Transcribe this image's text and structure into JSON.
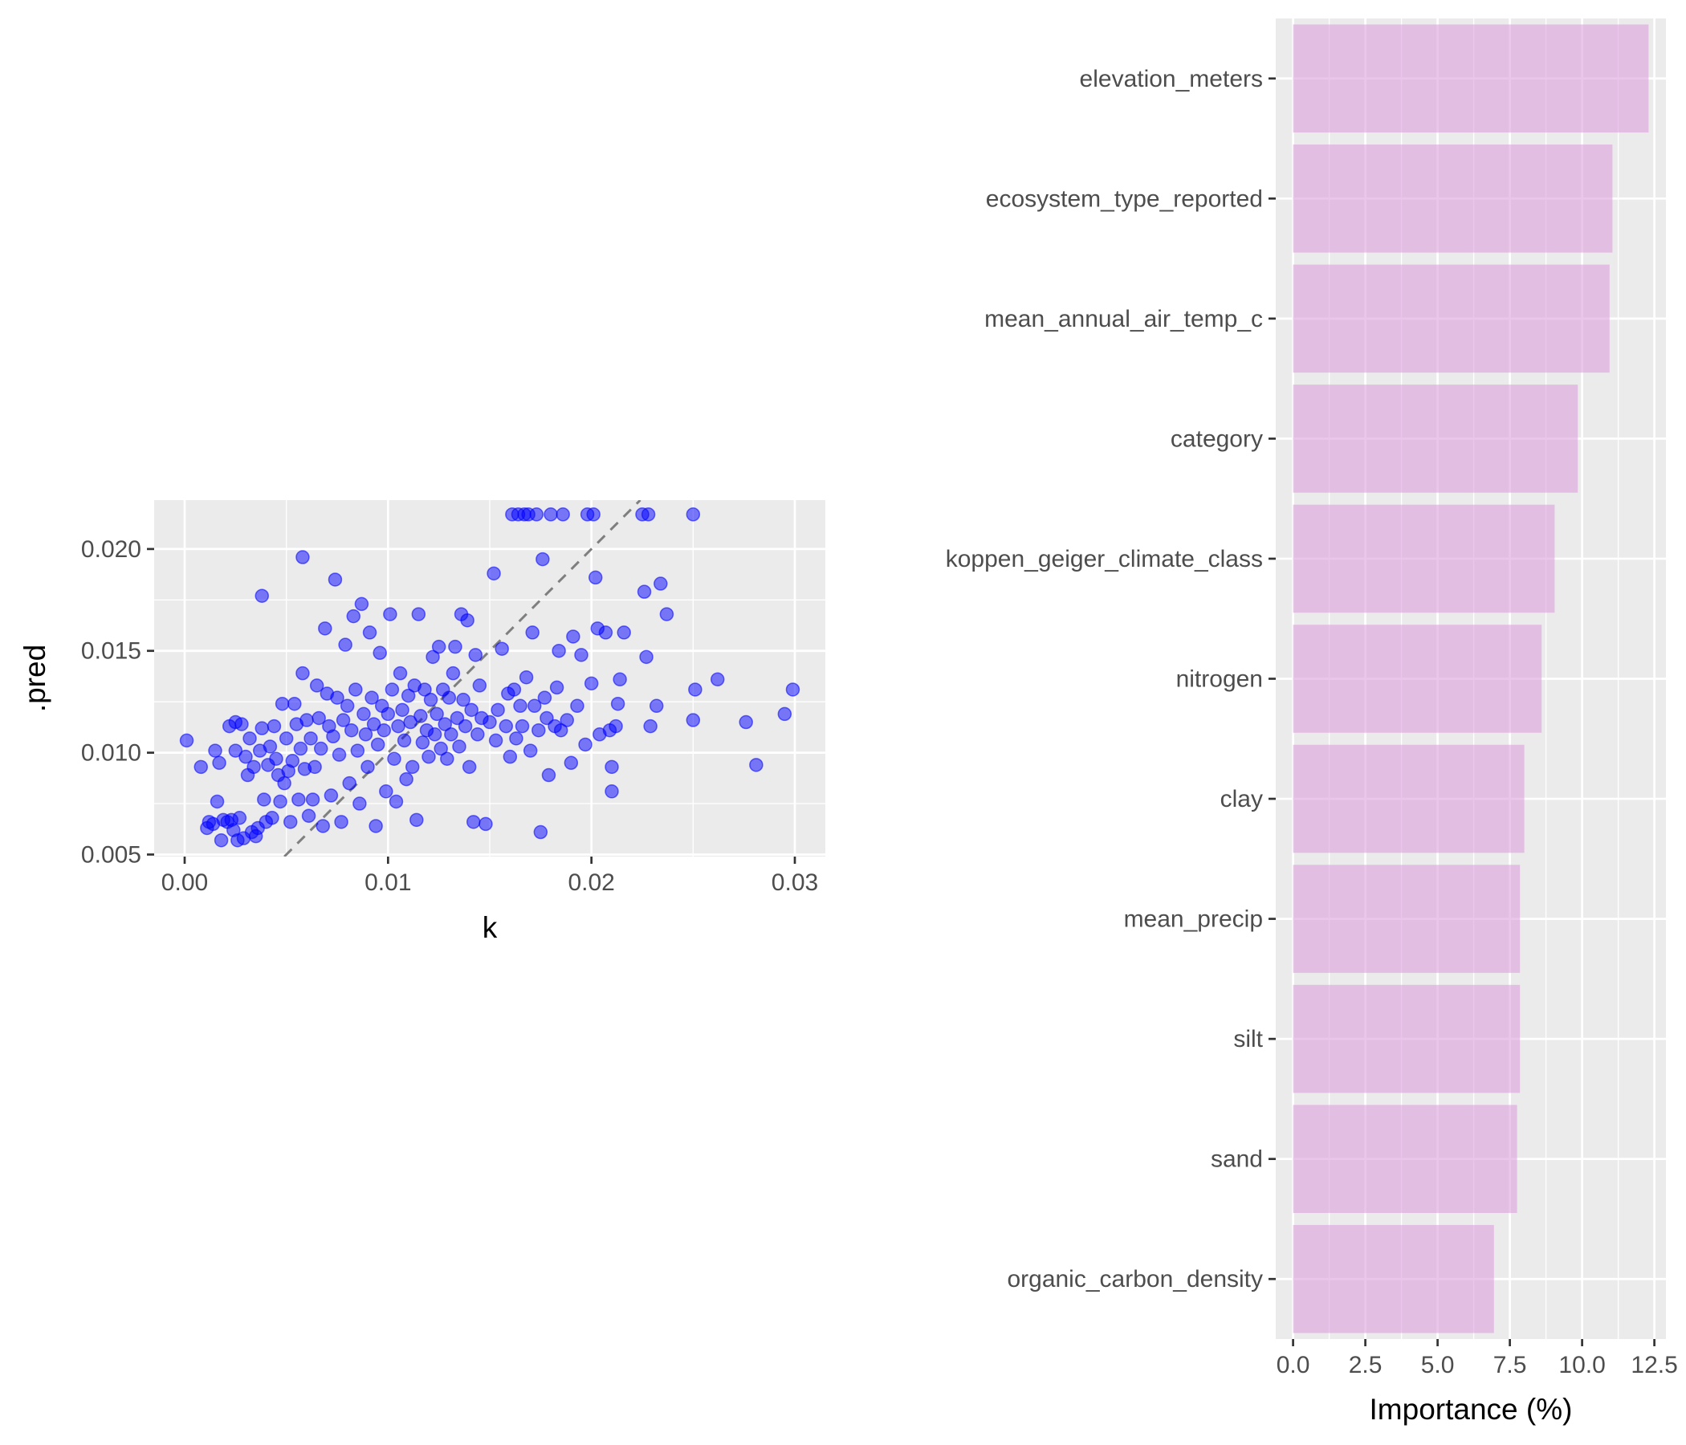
{
  "chart_data": [
    {
      "type": "scatter",
      "xlabel": "k",
      "ylabel": ".pred",
      "xlim": [
        -0.0015,
        0.0315
      ],
      "ylim": [
        0.0049,
        0.0224
      ],
      "x_ticks": [
        0.0,
        0.01,
        0.02,
        0.03
      ],
      "x_tick_labels": [
        "0.00",
        "0.01",
        "0.02",
        "0.03"
      ],
      "y_ticks": [
        0.005,
        0.01,
        0.015,
        0.02
      ],
      "y_tick_labels": [
        "0.005",
        "0.010",
        "0.015",
        "0.020"
      ],
      "reference_line": "y = x",
      "point_color": "#0000FF",
      "points": [
        [
          0.0001,
          0.0106
        ],
        [
          0.0008,
          0.0093
        ],
        [
          0.0011,
          0.0063
        ],
        [
          0.0012,
          0.0066
        ],
        [
          0.0014,
          0.0065
        ],
        [
          0.0015,
          0.0101
        ],
        [
          0.0016,
          0.0076
        ],
        [
          0.0017,
          0.0095
        ],
        [
          0.0018,
          0.0057
        ],
        [
          0.0019,
          0.0067
        ],
        [
          0.0021,
          0.0066
        ],
        [
          0.0022,
          0.0113
        ],
        [
          0.0023,
          0.0067
        ],
        [
          0.0024,
          0.0062
        ],
        [
          0.0025,
          0.0101
        ],
        [
          0.0025,
          0.0115
        ],
        [
          0.0026,
          0.0057
        ],
        [
          0.0027,
          0.0068
        ],
        [
          0.0028,
          0.0114
        ],
        [
          0.0029,
          0.0058
        ],
        [
          0.003,
          0.0098
        ],
        [
          0.0031,
          0.0089
        ],
        [
          0.0032,
          0.0107
        ],
        [
          0.0033,
          0.0061
        ],
        [
          0.0034,
          0.0093
        ],
        [
          0.0035,
          0.0059
        ],
        [
          0.0036,
          0.0063
        ],
        [
          0.0037,
          0.0101
        ],
        [
          0.0038,
          0.0112
        ],
        [
          0.0039,
          0.0077
        ],
        [
          0.0038,
          0.0177
        ],
        [
          0.004,
          0.0066
        ],
        [
          0.0041,
          0.0094
        ],
        [
          0.0042,
          0.0103
        ],
        [
          0.0043,
          0.0068
        ],
        [
          0.0044,
          0.0113
        ],
        [
          0.0045,
          0.0097
        ],
        [
          0.0046,
          0.0089
        ],
        [
          0.0047,
          0.0076
        ],
        [
          0.0048,
          0.0124
        ],
        [
          0.0049,
          0.0085
        ],
        [
          0.005,
          0.0107
        ],
        [
          0.0051,
          0.0091
        ],
        [
          0.0052,
          0.0066
        ],
        [
          0.0053,
          0.0096
        ],
        [
          0.0054,
          0.0124
        ],
        [
          0.0055,
          0.0114
        ],
        [
          0.0056,
          0.0077
        ],
        [
          0.0057,
          0.0102
        ],
        [
          0.0058,
          0.0139
        ],
        [
          0.0058,
          0.0196
        ],
        [
          0.0059,
          0.0092
        ],
        [
          0.006,
          0.0116
        ],
        [
          0.0061,
          0.0069
        ],
        [
          0.0062,
          0.0107
        ],
        [
          0.0063,
          0.0077
        ],
        [
          0.0064,
          0.0093
        ],
        [
          0.0065,
          0.0133
        ],
        [
          0.0066,
          0.0117
        ],
        [
          0.0067,
          0.0102
        ],
        [
          0.0068,
          0.0064
        ],
        [
          0.0069,
          0.0161
        ],
        [
          0.007,
          0.0129
        ],
        [
          0.0071,
          0.0113
        ],
        [
          0.0072,
          0.0079
        ],
        [
          0.0073,
          0.0108
        ],
        [
          0.0074,
          0.0185
        ],
        [
          0.0075,
          0.0127
        ],
        [
          0.0076,
          0.0099
        ],
        [
          0.0077,
          0.0066
        ],
        [
          0.0078,
          0.0116
        ],
        [
          0.0079,
          0.0153
        ],
        [
          0.008,
          0.0123
        ],
        [
          0.0081,
          0.0085
        ],
        [
          0.0082,
          0.0111
        ],
        [
          0.0083,
          0.0167
        ],
        [
          0.0084,
          0.0131
        ],
        [
          0.0085,
          0.0101
        ],
        [
          0.0086,
          0.0075
        ],
        [
          0.0087,
          0.0173
        ],
        [
          0.0088,
          0.0119
        ],
        [
          0.0089,
          0.0109
        ],
        [
          0.009,
          0.0093
        ],
        [
          0.0091,
          0.0159
        ],
        [
          0.0092,
          0.0127
        ],
        [
          0.0093,
          0.0114
        ],
        [
          0.0094,
          0.0064
        ],
        [
          0.0095,
          0.0104
        ],
        [
          0.0096,
          0.0149
        ],
        [
          0.0097,
          0.0123
        ],
        [
          0.0098,
          0.0111
        ],
        [
          0.0099,
          0.0081
        ],
        [
          0.01,
          0.0119
        ],
        [
          0.0101,
          0.0168
        ],
        [
          0.0102,
          0.0131
        ],
        [
          0.0103,
          0.0097
        ],
        [
          0.0104,
          0.0076
        ],
        [
          0.0105,
          0.0113
        ],
        [
          0.0106,
          0.0139
        ],
        [
          0.0107,
          0.0121
        ],
        [
          0.0108,
          0.0106
        ],
        [
          0.0109,
          0.0087
        ],
        [
          0.011,
          0.0128
        ],
        [
          0.0111,
          0.0115
        ],
        [
          0.0112,
          0.0093
        ],
        [
          0.0113,
          0.0133
        ],
        [
          0.0114,
          0.0067
        ],
        [
          0.0115,
          0.0168
        ],
        [
          0.0116,
          0.0118
        ],
        [
          0.0117,
          0.0105
        ],
        [
          0.0118,
          0.0131
        ],
        [
          0.0119,
          0.0111
        ],
        [
          0.012,
          0.0098
        ],
        [
          0.0121,
          0.0126
        ],
        [
          0.0122,
          0.0147
        ],
        [
          0.0123,
          0.0109
        ],
        [
          0.0124,
          0.0119
        ],
        [
          0.0125,
          0.0152
        ],
        [
          0.0126,
          0.0102
        ],
        [
          0.0127,
          0.0131
        ],
        [
          0.0128,
          0.0114
        ],
        [
          0.0129,
          0.0097
        ],
        [
          0.013,
          0.0127
        ],
        [
          0.0131,
          0.0109
        ],
        [
          0.0132,
          0.0139
        ],
        [
          0.0133,
          0.0152
        ],
        [
          0.0134,
          0.0117
        ],
        [
          0.0135,
          0.0103
        ],
        [
          0.0136,
          0.0168
        ],
        [
          0.0137,
          0.0126
        ],
        [
          0.0138,
          0.0113
        ],
        [
          0.0139,
          0.0165
        ],
        [
          0.014,
          0.0093
        ],
        [
          0.0141,
          0.0121
        ],
        [
          0.0142,
          0.0066
        ],
        [
          0.0143,
          0.0148
        ],
        [
          0.0144,
          0.0109
        ],
        [
          0.0145,
          0.0133
        ],
        [
          0.0146,
          0.0117
        ],
        [
          0.0148,
          0.0065
        ],
        [
          0.015,
          0.0115
        ],
        [
          0.0152,
          0.0188
        ],
        [
          0.0153,
          0.0106
        ],
        [
          0.0154,
          0.0121
        ],
        [
          0.0156,
          0.0151
        ],
        [
          0.0158,
          0.0113
        ],
        [
          0.0159,
          0.0129
        ],
        [
          0.016,
          0.0098
        ],
        [
          0.0161,
          0.0217
        ],
        [
          0.0162,
          0.0131
        ],
        [
          0.0163,
          0.0107
        ],
        [
          0.0164,
          0.0217
        ],
        [
          0.0165,
          0.0123
        ],
        [
          0.0166,
          0.0113
        ],
        [
          0.0167,
          0.0217
        ],
        [
          0.0168,
          0.0137
        ],
        [
          0.0169,
          0.0217
        ],
        [
          0.017,
          0.0101
        ],
        [
          0.0171,
          0.0159
        ],
        [
          0.0172,
          0.0123
        ],
        [
          0.0173,
          0.0217
        ],
        [
          0.0174,
          0.0111
        ],
        [
          0.0175,
          0.0061
        ],
        [
          0.0176,
          0.0195
        ],
        [
          0.0177,
          0.0127
        ],
        [
          0.0178,
          0.0117
        ],
        [
          0.0179,
          0.0089
        ],
        [
          0.018,
          0.0217
        ],
        [
          0.0182,
          0.0113
        ],
        [
          0.0183,
          0.0132
        ],
        [
          0.0184,
          0.015
        ],
        [
          0.0185,
          0.0111
        ],
        [
          0.0186,
          0.0217
        ],
        [
          0.0188,
          0.0116
        ],
        [
          0.019,
          0.0095
        ],
        [
          0.0191,
          0.0157
        ],
        [
          0.0193,
          0.0123
        ],
        [
          0.0195,
          0.0148
        ],
        [
          0.0197,
          0.0104
        ],
        [
          0.0198,
          0.0217
        ],
        [
          0.02,
          0.0134
        ],
        [
          0.0201,
          0.0217
        ],
        [
          0.0202,
          0.0186
        ],
        [
          0.0203,
          0.0161
        ],
        [
          0.0204,
          0.0109
        ],
        [
          0.0207,
          0.0159
        ],
        [
          0.0209,
          0.0111
        ],
        [
          0.021,
          0.0081
        ],
        [
          0.021,
          0.0093
        ],
        [
          0.0212,
          0.0113
        ],
        [
          0.0213,
          0.0124
        ],
        [
          0.0214,
          0.0136
        ],
        [
          0.0216,
          0.0159
        ],
        [
          0.0225,
          0.0217
        ],
        [
          0.0226,
          0.0179
        ],
        [
          0.0227,
          0.0147
        ],
        [
          0.0228,
          0.0217
        ],
        [
          0.0229,
          0.0113
        ],
        [
          0.0232,
          0.0123
        ],
        [
          0.0234,
          0.0183
        ],
        [
          0.0237,
          0.0168
        ],
        [
          0.025,
          0.0116
        ],
        [
          0.025,
          0.0217
        ],
        [
          0.0251,
          0.0131
        ],
        [
          0.0262,
          0.0136
        ],
        [
          0.0276,
          0.0115
        ],
        [
          0.0281,
          0.0094
        ],
        [
          0.0295,
          0.0119
        ],
        [
          0.0299,
          0.0131
        ]
      ]
    },
    {
      "type": "bar",
      "orientation": "horizontal",
      "xlabel": "Importance (%)",
      "ylabel": "",
      "xlim": [
        -0.6,
        12.9
      ],
      "x_ticks": [
        0,
        2.5,
        5,
        7.5,
        10,
        12.5
      ],
      "x_tick_labels": [
        "0.0",
        "2.5",
        "5.0",
        "7.5",
        "10.0",
        "12.5"
      ],
      "bar_color": "#DDA0DD",
      "categories": [
        "elevation_meters",
        "ecosystem_type_reported",
        "mean_annual_air_temp_c",
        "category",
        "koppen_geiger_climate_class",
        "nitrogen",
        "clay",
        "mean_precip",
        "silt",
        "sand",
        "organic_carbon_density"
      ],
      "values": [
        12.3,
        11.05,
        10.95,
        9.85,
        9.05,
        8.6,
        8.0,
        7.85,
        7.85,
        7.75,
        6.95
      ]
    }
  ]
}
